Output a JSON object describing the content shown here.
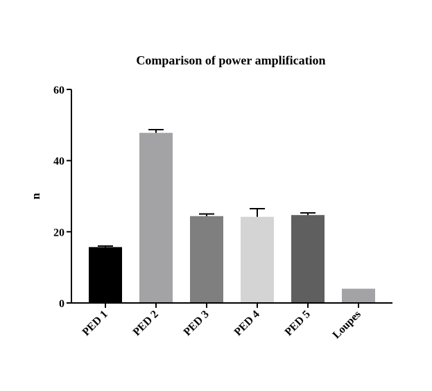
{
  "chart_data": {
    "type": "bar",
    "title": "Comparison of power amplification",
    "xlabel": "",
    "ylabel": "n",
    "ylim": [
      0,
      60
    ],
    "yticks": [
      0,
      20,
      40,
      60
    ],
    "grid": false,
    "categories": [
      "PED 1",
      "PED 2",
      "PED 3",
      "PED 4",
      "PED 5",
      "Loupes"
    ],
    "values": [
      15.7,
      47.8,
      24.4,
      24.2,
      24.7,
      4.0
    ],
    "errors": [
      0.3,
      0.9,
      0.6,
      2.3,
      0.6,
      0
    ],
    "colors": [
      "#000000",
      "#a3a3a6",
      "#7f7f7f",
      "#d4d4d4",
      "#5f5f5f",
      "#a3a3a6"
    ]
  }
}
